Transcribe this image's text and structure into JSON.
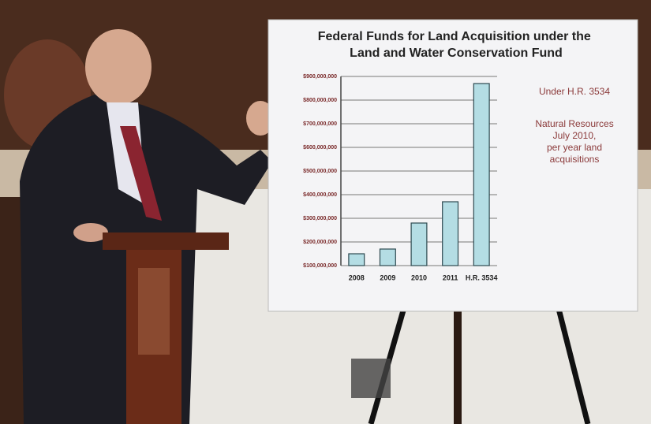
{
  "chart_data": {
    "type": "bar",
    "title": "Federal Funds for Land Acquisition under the Land and Water Conservation Fund",
    "categories": [
      "2008",
      "2009",
      "2010",
      "2011",
      "H.R. 3534"
    ],
    "values": [
      150000000,
      170000000,
      280000000,
      370000000,
      870000000
    ],
    "color": "#b4dde4",
    "ylim": [
      100000000,
      900000000
    ],
    "yticks": [
      {
        "value": 100000000,
        "label": "$100,000,000"
      },
      {
        "value": 200000000,
        "label": "$200,000,000"
      },
      {
        "value": 300000000,
        "label": "$300,000,000"
      },
      {
        "value": 400000000,
        "label": "$400,000,000"
      },
      {
        "value": 500000000,
        "label": "$500,000,000"
      },
      {
        "value": 600000000,
        "label": "$600,000,000"
      },
      {
        "value": 700000000,
        "label": "$700,000,000"
      },
      {
        "value": 800000000,
        "label": "$800,000,000"
      },
      {
        "value": 900000000,
        "label": "$900,000,000"
      }
    ],
    "grid": true,
    "annotations": [
      "Under H.R. 3534",
      "Natural Resources",
      "July 2010,",
      "per year land",
      "acquisitions"
    ]
  }
}
